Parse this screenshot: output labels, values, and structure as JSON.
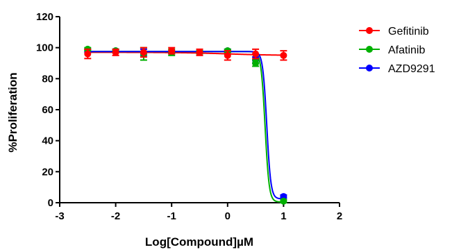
{
  "chart_data": {
    "type": "scatter",
    "xlabel": "Log[Compound]µM",
    "ylabel": "%Proliferation",
    "xlim": [
      -3,
      2
    ],
    "ylim": [
      0,
      120
    ],
    "x_ticks": [
      -3,
      -2,
      -1,
      0,
      1,
      2
    ],
    "y_ticks": [
      0,
      20,
      40,
      60,
      80,
      100,
      120
    ],
    "x_tick_labels": [
      "-3",
      "-2",
      "-1",
      "0",
      "1",
      "2"
    ],
    "y_tick_labels": [
      "0",
      "20",
      "40",
      "60",
      "80",
      "100",
      "120"
    ],
    "grid": false,
    "legend_position": "top-right",
    "series": [
      {
        "name": "Gefitinib",
        "color": "#ff0000",
        "x": [
          -2.5,
          -2,
          -1.5,
          -1,
          -0.5,
          0,
          0.5,
          1
        ],
        "y": [
          96,
          97,
          97,
          98,
          97,
          95,
          96,
          95
        ],
        "err": [
          3,
          2,
          3,
          2,
          2,
          3,
          3,
          3
        ],
        "fit": {
          "top": 97,
          "bottom": 95,
          "logec50": 0.0,
          "hill": -1
        }
      },
      {
        "name": "Afatinib",
        "color": "#00b000",
        "x": [
          -2.5,
          -2,
          -1.5,
          -1,
          -0.5,
          0,
          0.5,
          1
        ],
        "y": [
          99,
          98,
          96,
          97,
          97,
          98,
          90,
          1
        ],
        "err": [
          1,
          1,
          4,
          2,
          1,
          1,
          2,
          1
        ],
        "fit": {
          "top": 97.5,
          "bottom": 0.5,
          "logec50": 0.67,
          "hill": -12
        }
      },
      {
        "name": "AZD9291",
        "color": "#0000ff",
        "x": [
          -2.5,
          -2,
          -1.5,
          -1,
          -0.5,
          0,
          0.5,
          1
        ],
        "y": [
          98,
          98,
          97,
          97,
          97,
          98,
          92,
          4
        ],
        "err": [
          1,
          1,
          2,
          1,
          1,
          1,
          2,
          1
        ],
        "fit": {
          "top": 97.5,
          "bottom": 2.5,
          "logec50": 0.7,
          "hill": -12
        }
      }
    ]
  }
}
